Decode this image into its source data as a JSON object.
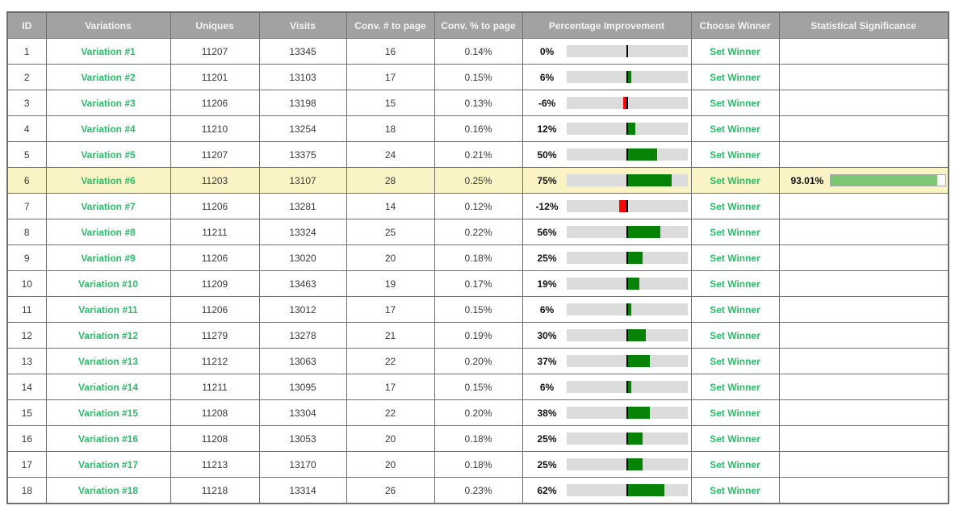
{
  "table": {
    "columns": [
      {
        "key": "id",
        "label": "ID"
      },
      {
        "key": "variation",
        "label": "Variations"
      },
      {
        "key": "uniques",
        "label": "Uniques"
      },
      {
        "key": "visits",
        "label": "Visits"
      },
      {
        "key": "conv_num",
        "label": "Conv. # to page"
      },
      {
        "key": "conv_pct",
        "label": "Conv. % to page"
      },
      {
        "key": "improvement",
        "label": "Percentage Improvement"
      },
      {
        "key": "choose_winner",
        "label": "Choose Winner"
      },
      {
        "key": "significance",
        "label": "Statistical Significance"
      }
    ],
    "set_winner_label": "Set Winner",
    "rows": [
      {
        "id": 1,
        "variation": "Variation #1",
        "uniques": 11207,
        "visits": 13345,
        "conv_num": 16,
        "conv_pct": "0.14%",
        "improvement_label": "0%",
        "improvement_value": 0,
        "highlighted": false,
        "significance": null
      },
      {
        "id": 2,
        "variation": "Variation #2",
        "uniques": 11201,
        "visits": 13103,
        "conv_num": 17,
        "conv_pct": "0.15%",
        "improvement_label": "6%",
        "improvement_value": 6,
        "highlighted": false,
        "significance": null
      },
      {
        "id": 3,
        "variation": "Variation #3",
        "uniques": 11206,
        "visits": 13198,
        "conv_num": 15,
        "conv_pct": "0.13%",
        "improvement_label": "-6%",
        "improvement_value": -6,
        "highlighted": false,
        "significance": null
      },
      {
        "id": 4,
        "variation": "Variation #4",
        "uniques": 11210,
        "visits": 13254,
        "conv_num": 18,
        "conv_pct": "0.16%",
        "improvement_label": "12%",
        "improvement_value": 12,
        "highlighted": false,
        "significance": null
      },
      {
        "id": 5,
        "variation": "Variation #5",
        "uniques": 11207,
        "visits": 13375,
        "conv_num": 24,
        "conv_pct": "0.21%",
        "improvement_label": "50%",
        "improvement_value": 50,
        "highlighted": false,
        "significance": null
      },
      {
        "id": 6,
        "variation": "Variation #6",
        "uniques": 11203,
        "visits": 13107,
        "conv_num": 28,
        "conv_pct": "0.25%",
        "improvement_label": "75%",
        "improvement_value": 75,
        "highlighted": true,
        "significance": {
          "label": "93.01%",
          "percent": 93.01
        }
      },
      {
        "id": 7,
        "variation": "Variation #7",
        "uniques": 11206,
        "visits": 13281,
        "conv_num": 14,
        "conv_pct": "0.12%",
        "improvement_label": "-12%",
        "improvement_value": -12,
        "highlighted": false,
        "significance": null
      },
      {
        "id": 8,
        "variation": "Variation #8",
        "uniques": 11211,
        "visits": 13324,
        "conv_num": 25,
        "conv_pct": "0.22%",
        "improvement_label": "56%",
        "improvement_value": 56,
        "highlighted": false,
        "significance": null
      },
      {
        "id": 9,
        "variation": "Variation #9",
        "uniques": 11206,
        "visits": 13020,
        "conv_num": 20,
        "conv_pct": "0.18%",
        "improvement_label": "25%",
        "improvement_value": 25,
        "highlighted": false,
        "significance": null
      },
      {
        "id": 10,
        "variation": "Variation #10",
        "uniques": 11209,
        "visits": 13463,
        "conv_num": 19,
        "conv_pct": "0.17%",
        "improvement_label": "19%",
        "improvement_value": 19,
        "highlighted": false,
        "significance": null
      },
      {
        "id": 11,
        "variation": "Variation #11",
        "uniques": 11206,
        "visits": 13012,
        "conv_num": 17,
        "conv_pct": "0.15%",
        "improvement_label": "6%",
        "improvement_value": 6,
        "highlighted": false,
        "significance": null
      },
      {
        "id": 12,
        "variation": "Variation #12",
        "uniques": 11279,
        "visits": 13278,
        "conv_num": 21,
        "conv_pct": "0.19%",
        "improvement_label": "30%",
        "improvement_value": 30,
        "highlighted": false,
        "significance": null
      },
      {
        "id": 13,
        "variation": "Variation #13",
        "uniques": 11212,
        "visits": 13063,
        "conv_num": 22,
        "conv_pct": "0.20%",
        "improvement_label": "37%",
        "improvement_value": 37,
        "highlighted": false,
        "significance": null
      },
      {
        "id": 14,
        "variation": "Variation #14",
        "uniques": 11211,
        "visits": 13095,
        "conv_num": 17,
        "conv_pct": "0.15%",
        "improvement_label": "6%",
        "improvement_value": 6,
        "highlighted": false,
        "significance": null
      },
      {
        "id": 15,
        "variation": "Variation #15",
        "uniques": 11208,
        "visits": 13304,
        "conv_num": 22,
        "conv_pct": "0.20%",
        "improvement_label": "38%",
        "improvement_value": 38,
        "highlighted": false,
        "significance": null
      },
      {
        "id": 16,
        "variation": "Variation #16",
        "uniques": 11208,
        "visits": 13053,
        "conv_num": 20,
        "conv_pct": "0.18%",
        "improvement_label": "25%",
        "improvement_value": 25,
        "highlighted": false,
        "significance": null
      },
      {
        "id": 17,
        "variation": "Variation #17",
        "uniques": 11213,
        "visits": 13170,
        "conv_num": 20,
        "conv_pct": "0.18%",
        "improvement_label": "25%",
        "improvement_value": 25,
        "highlighted": false,
        "significance": null
      },
      {
        "id": 18,
        "variation": "Variation #18",
        "uniques": 11218,
        "visits": 13314,
        "conv_num": 26,
        "conv_pct": "0.23%",
        "improvement_label": "62%",
        "improvement_value": 62,
        "highlighted": false,
        "significance": null
      }
    ]
  },
  "colors": {
    "header_bg": "#a2a2a2",
    "header_text": "#f4f4f4",
    "border": "#6f6f6f",
    "link_green": "#2ebd6b",
    "bar_track": "#dcdcdc",
    "bar_positive": "#068206",
    "bar_negative": "#fb0606",
    "highlight_row_bg": "#faf3c3",
    "significance_fill": "#7cc674"
  }
}
